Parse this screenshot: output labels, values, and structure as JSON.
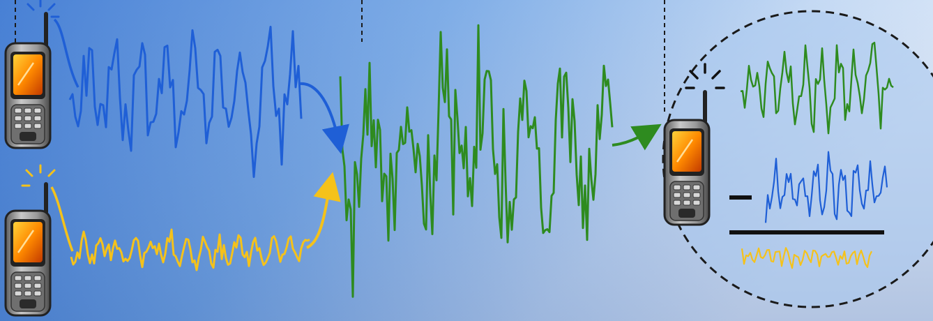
{
  "colors": {
    "background_left": "#3a78d4",
    "background_right": "#c9dcf3",
    "signal_a": "#1f5fd6",
    "signal_b": "#f5c21a",
    "combined": "#2e8b1f",
    "phone_body": "#8c8c8c",
    "phone_screen": "#ff7a00",
    "dashed_line": "#1a1a1a",
    "circle_fill": "#9fc2ec"
  },
  "icons": {
    "phone": "mobile-phone-icon",
    "signal": "signal-burst-icon",
    "arrow": "curved-arrow-icon",
    "minus": "minus-sign-icon",
    "divider": "fraction-bar"
  },
  "diagram": {
    "nodes": [
      "phone-a",
      "phone-b",
      "combined-signal",
      "receiver-phone"
    ],
    "edges": [
      {
        "from": "phone-a",
        "to": "combined-signal"
      },
      {
        "from": "phone-b",
        "to": "combined-signal"
      },
      {
        "from": "combined-signal",
        "to": "receiver-phone"
      }
    ]
  }
}
